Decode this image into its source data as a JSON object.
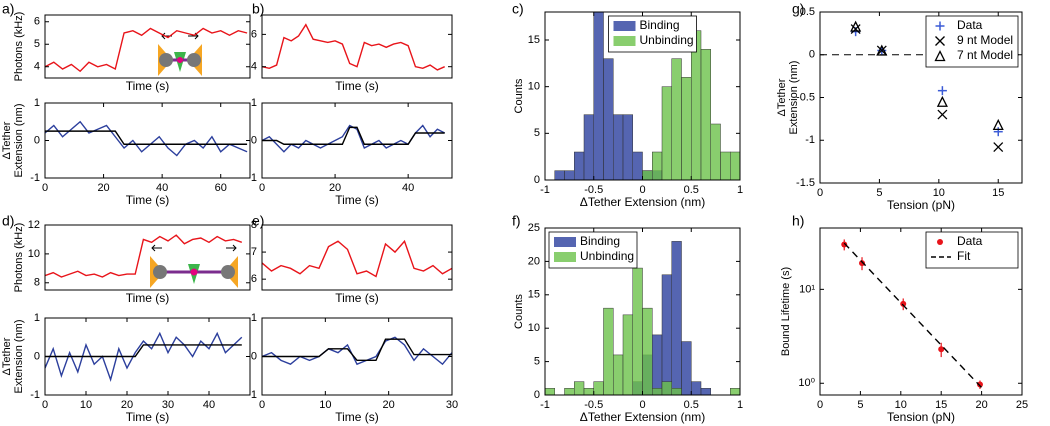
{
  "chart_data": [
    {
      "type": "line",
      "panel": "a)",
      "ylabel": "Photons (kHz)",
      "xlabel": "Time (s)",
      "xlim": [
        0,
        70
      ],
      "ylim": [
        3.5,
        6.3
      ],
      "yticks": [
        4,
        5,
        6
      ],
      "x": [
        0,
        3,
        6,
        9,
        12,
        15,
        18,
        21,
        24,
        27,
        30,
        33,
        36,
        39,
        42,
        45,
        48,
        51,
        54,
        57,
        60,
        63,
        66,
        69
      ],
      "series": [
        {
          "color": "#e8141a",
          "values": [
            4.0,
            4.2,
            3.9,
            4.1,
            3.8,
            4.2,
            4.0,
            4.1,
            3.9,
            5.5,
            5.6,
            5.4,
            5.7,
            5.5,
            5.3,
            5.6,
            5.5,
            5.4,
            5.7,
            5.5,
            5.6,
            5.4,
            5.6,
            5.5
          ]
        }
      ]
    },
    {
      "type": "line",
      "ylabel": [
        "ΔTether",
        "Extension (nm)"
      ],
      "xlabel": "Time (s)",
      "xlim": [
        0,
        70
      ],
      "ylim": [
        -1,
        1
      ],
      "yticks": [
        -1,
        0,
        1
      ],
      "xticks": [
        0,
        20,
        40,
        60
      ],
      "x": [
        0,
        3,
        6,
        9,
        12,
        15,
        18,
        21,
        24,
        27,
        30,
        33,
        36,
        39,
        42,
        45,
        48,
        51,
        54,
        57,
        60,
        63,
        66,
        69
      ],
      "series": [
        {
          "color": "#2c3f9d",
          "values": [
            0.2,
            0.4,
            0.1,
            0.3,
            0.5,
            0.2,
            0.3,
            0.4,
            0.1,
            -0.2,
            0.0,
            -0.3,
            -0.1,
            0.1,
            -0.2,
            -0.4,
            -0.1,
            0.0,
            -0.2,
            0.1,
            -0.3,
            -0.1,
            -0.2,
            -0.3
          ]
        },
        {
          "color": "#000000",
          "values": [
            0.25,
            0.25,
            0.25,
            0.25,
            0.25,
            0.25,
            0.25,
            0.25,
            0.25,
            -0.1,
            -0.1,
            -0.1,
            -0.1,
            -0.1,
            -0.1,
            -0.1,
            -0.1,
            -0.1,
            -0.1,
            -0.1,
            -0.1,
            -0.1,
            -0.1,
            -0.1
          ]
        }
      ]
    },
    {
      "type": "line",
      "panel": "b)",
      "xlabel": "Time (s)",
      "xlim": [
        0,
        52
      ],
      "ylim": [
        3.3,
        7.2
      ],
      "yticks": [
        4,
        6
      ],
      "x": [
        0,
        2,
        4,
        6,
        8,
        10,
        12,
        14,
        16,
        18,
        20,
        22,
        24,
        26,
        28,
        30,
        32,
        34,
        36,
        38,
        40,
        42,
        44,
        46,
        48,
        50
      ],
      "series": [
        {
          "color": "#e8141a",
          "values": [
            4.0,
            3.9,
            4.1,
            5.8,
            5.6,
            5.9,
            6.6,
            5.7,
            5.6,
            5.5,
            5.6,
            5.4,
            4.2,
            4.0,
            5.5,
            5.3,
            5.4,
            5.2,
            5.4,
            5.5,
            5.3,
            4.0,
            3.9,
            4.1,
            3.8,
            4.0
          ]
        }
      ]
    },
    {
      "type": "line",
      "xlabel": "Time (s)",
      "xlim": [
        0,
        52
      ],
      "ylim": [
        -1,
        1
      ],
      "yticks": [
        -1,
        0,
        1
      ],
      "xticks": [
        0,
        20,
        40
      ],
      "x": [
        0,
        2,
        4,
        6,
        8,
        10,
        12,
        14,
        16,
        18,
        20,
        22,
        24,
        26,
        28,
        30,
        32,
        34,
        36,
        38,
        40,
        42,
        44,
        46,
        48,
        50
      ],
      "series": [
        {
          "color": "#2c3f9d",
          "values": [
            0.0,
            0.1,
            -0.1,
            -0.3,
            -0.1,
            -0.2,
            0.0,
            -0.1,
            -0.2,
            -0.1,
            0.0,
            0.1,
            0.4,
            0.3,
            -0.2,
            -0.1,
            0.0,
            -0.2,
            -0.1,
            0.0,
            -0.1,
            0.2,
            0.4,
            0.1,
            0.3,
            0.2
          ]
        },
        {
          "color": "#000000",
          "values": [
            0,
            0,
            0,
            -0.1,
            -0.1,
            -0.1,
            -0.1,
            -0.1,
            -0.1,
            -0.1,
            -0.1,
            -0.1,
            0.35,
            0.35,
            -0.1,
            -0.1,
            -0.1,
            -0.1,
            -0.1,
            -0.1,
            -0.1,
            0.2,
            0.2,
            0.2,
            0.2,
            0.2
          ]
        }
      ]
    },
    {
      "type": "histogram",
      "panel": "c)",
      "ylabel": "Counts",
      "xlabel": "ΔTether Extension (nm)",
      "xlim": [
        -1,
        1
      ],
      "ylim": [
        0,
        18
      ],
      "xticks": [
        -1,
        -0.5,
        0,
        0.5,
        1
      ],
      "yticks": [
        0,
        5,
        10,
        15
      ],
      "legend": "upper center",
      "bins": [
        -1,
        -0.9,
        -0.8,
        -0.7,
        -0.6,
        -0.5,
        -0.4,
        -0.3,
        -0.2,
        -0.1,
        0,
        0.1,
        0.2,
        0.3,
        0.4,
        0.5,
        0.6,
        0.7,
        0.8,
        0.9,
        1
      ],
      "series": [
        {
          "name": "Binding",
          "color": "#2b3f9e",
          "values": [
            0,
            1,
            1,
            3,
            7,
            18,
            13,
            7,
            7,
            3,
            1,
            1,
            0,
            0,
            0,
            0,
            0,
            0,
            0,
            0
          ]
        },
        {
          "name": "Unbinding",
          "color": "#6cc24a",
          "values": [
            0,
            0,
            0,
            0,
            0,
            0,
            0,
            0,
            0,
            0,
            1,
            3,
            10,
            13,
            11,
            16,
            14,
            6,
            3,
            3
          ]
        }
      ]
    },
    {
      "type": "scatter",
      "panel": "g)",
      "ylabel": [
        "ΔTether",
        "Extension (nm)"
      ],
      "xlabel": "Tension (pN)",
      "xlim": [
        0,
        17
      ],
      "ylim": [
        -1.5,
        0.5
      ],
      "xticks": [
        0,
        5,
        10,
        15
      ],
      "yticks": [
        -1.5,
        -1,
        -0.5,
        0,
        0.5
      ],
      "legend": "upper right",
      "reference_line": 0,
      "x": [
        3,
        5.2,
        10.3,
        15
      ],
      "series": [
        {
          "name": "Data",
          "color": "#3b5bd6",
          "marker": "+",
          "values": [
            0.27,
            0.05,
            -0.42,
            -0.9
          ]
        },
        {
          "name": "9 nt Model",
          "color": "#000000",
          "marker": "x",
          "values": [
            0.3,
            0.05,
            -0.7,
            -1.08
          ]
        },
        {
          "name": "7 nt Model",
          "color": "#000000",
          "marker": "^",
          "values": [
            0.33,
            0.05,
            -0.55,
            -0.82
          ]
        }
      ]
    },
    {
      "type": "line",
      "panel": "d)",
      "ylabel": "Photons (kHz)",
      "xlabel": "Time (s)",
      "xlim": [
        0,
        50
      ],
      "ylim": [
        7.5,
        12
      ],
      "yticks": [
        8,
        10,
        12
      ],
      "x": [
        0,
        2,
        4,
        6,
        8,
        10,
        12,
        14,
        16,
        18,
        20,
        22,
        24,
        26,
        28,
        30,
        32,
        34,
        36,
        38,
        40,
        42,
        44,
        46,
        48
      ],
      "series": [
        {
          "color": "#e8141a",
          "values": [
            8.5,
            8.7,
            8.4,
            8.6,
            8.8,
            8.5,
            8.6,
            8.4,
            8.7,
            8.5,
            8.6,
            8.6,
            11.0,
            10.8,
            11.2,
            10.9,
            11.3,
            10.7,
            11.0,
            11.1,
            10.8,
            11.2,
            10.9,
            11.0,
            10.8
          ]
        }
      ]
    },
    {
      "type": "line",
      "ylabel": [
        "ΔTether",
        "Extension (nm)"
      ],
      "xlabel": "Time (s)",
      "xlim": [
        0,
        50
      ],
      "ylim": [
        -1,
        1
      ],
      "yticks": [
        -1,
        0,
        1
      ],
      "xticks": [
        0,
        10,
        20,
        30,
        40
      ],
      "x": [
        0,
        2,
        4,
        6,
        8,
        10,
        12,
        14,
        16,
        18,
        20,
        22,
        24,
        26,
        28,
        30,
        32,
        34,
        36,
        38,
        40,
        42,
        44,
        46,
        48
      ],
      "series": [
        {
          "color": "#2c3f9d",
          "values": [
            -0.3,
            0.2,
            -0.5,
            0.1,
            -0.4,
            0.3,
            -0.2,
            0.0,
            -0.6,
            0.2,
            -0.3,
            0.1,
            0.4,
            0.2,
            0.6,
            0.1,
            0.5,
            0.3,
            0.0,
            0.4,
            0.2,
            0.6,
            0.1,
            0.3,
            0.5
          ]
        },
        {
          "color": "#000000",
          "values": [
            0,
            0,
            0,
            0,
            0,
            0,
            0,
            0,
            0,
            0,
            0,
            0,
            0.3,
            0.3,
            0.3,
            0.3,
            0.3,
            0.3,
            0.3,
            0.3,
            0.3,
            0.3,
            0.3,
            0.3,
            0.3
          ]
        }
      ]
    },
    {
      "type": "line",
      "panel": "e)",
      "xlabel": "Time (s)",
      "xlim": [
        0,
        30
      ],
      "ylim": [
        5.6,
        8
      ],
      "yticks": [
        6,
        7,
        8
      ],
      "x": [
        0,
        1.5,
        3,
        4.5,
        6,
        7.5,
        9,
        10.5,
        12,
        13.5,
        15,
        16.5,
        18,
        19.5,
        21,
        22.5,
        24,
        25.5,
        27,
        28.5,
        30
      ],
      "series": [
        {
          "color": "#e8141a",
          "values": [
            6.6,
            6.3,
            6.5,
            6.4,
            6.2,
            6.5,
            6.4,
            7.2,
            7.4,
            7.1,
            6.2,
            6.3,
            6.1,
            7.3,
            7.0,
            7.4,
            6.4,
            6.3,
            6.5,
            6.2,
            6.4
          ]
        }
      ]
    },
    {
      "type": "line",
      "xlabel": "Time (s)",
      "xlim": [
        0,
        30
      ],
      "ylim": [
        -1,
        1
      ],
      "yticks": [
        -1,
        0,
        1
      ],
      "xticks": [
        0,
        10,
        20,
        30
      ],
      "x": [
        0,
        1.5,
        3,
        4.5,
        6,
        7.5,
        9,
        10.5,
        12,
        13.5,
        15,
        16.5,
        18,
        19.5,
        21,
        22.5,
        24,
        25.5,
        27,
        28.5,
        30
      ],
      "series": [
        {
          "color": "#2c3f9d",
          "values": [
            0.0,
            0.1,
            -0.1,
            -0.2,
            0.0,
            -0.1,
            0.0,
            0.2,
            0.1,
            0.3,
            -0.2,
            -0.1,
            0.0,
            0.4,
            0.5,
            0.3,
            -0.1,
            0.2,
            0.0,
            -0.2,
            0.1
          ]
        },
        {
          "color": "#000000",
          "values": [
            0,
            0,
            0,
            0,
            0,
            0,
            0,
            0.2,
            0.2,
            0.2,
            -0.1,
            -0.1,
            -0.1,
            0.45,
            0.45,
            0.45,
            0.05,
            0.05,
            0.05,
            0.05,
            0.05
          ]
        }
      ]
    },
    {
      "type": "histogram",
      "panel": "f)",
      "ylabel": "Counts",
      "xlabel": "ΔTether Extension (nm)",
      "xlim": [
        -1,
        1
      ],
      "ylim": [
        0,
        25
      ],
      "xticks": [
        -1,
        -0.5,
        0,
        0.5,
        1
      ],
      "yticks": [
        0,
        5,
        10,
        15,
        20,
        25
      ],
      "legend": "upper left",
      "bins": [
        -1,
        -0.9,
        -0.8,
        -0.7,
        -0.6,
        -0.5,
        -0.4,
        -0.3,
        -0.2,
        -0.1,
        0,
        0.1,
        0.2,
        0.3,
        0.4,
        0.5,
        0.6,
        0.7,
        0.8,
        0.9,
        1
      ],
      "series": [
        {
          "name": "Binding",
          "color": "#2b3f9e",
          "values": [
            0,
            0,
            0,
            0,
            0,
            0,
            0,
            0,
            0,
            2,
            6,
            9,
            18,
            23,
            8,
            2,
            1,
            0,
            0,
            0
          ]
        },
        {
          "name": "Unbinding",
          "color": "#6cc24a",
          "values": [
            1,
            0,
            1,
            2,
            1,
            2,
            13,
            6,
            12,
            19,
            13,
            1,
            2,
            1,
            0,
            0,
            0,
            0,
            0,
            1
          ]
        }
      ]
    },
    {
      "type": "scatter",
      "panel": "h)",
      "ylabel": "Bound Lifetime (s)",
      "xlabel": "Tension (pN)",
      "xlim": [
        0,
        25
      ],
      "ylim": [
        0.75,
        45
      ],
      "log_y": true,
      "xticks": [
        0,
        5,
        10,
        15,
        20,
        25
      ],
      "yticks": [
        {
          "value": 1,
          "label": "10⁰"
        },
        {
          "value": 10,
          "label": "10¹"
        }
      ],
      "legend": "upper right",
      "x": [
        3,
        5.2,
        10.3,
        15,
        19.8
      ],
      "series": [
        {
          "name": "Data",
          "color": "#e8141a",
          "marker": "o",
          "values": [
            30,
            19,
            7,
            2.3,
            0.97
          ],
          "errors": [
            4,
            3,
            1,
            0.4,
            0.1
          ]
        },
        {
          "name": "Fit",
          "color": "#000000",
          "dash": true,
          "x": [
            3,
            20
          ],
          "values": [
            31,
            0.9
          ]
        }
      ]
    }
  ]
}
